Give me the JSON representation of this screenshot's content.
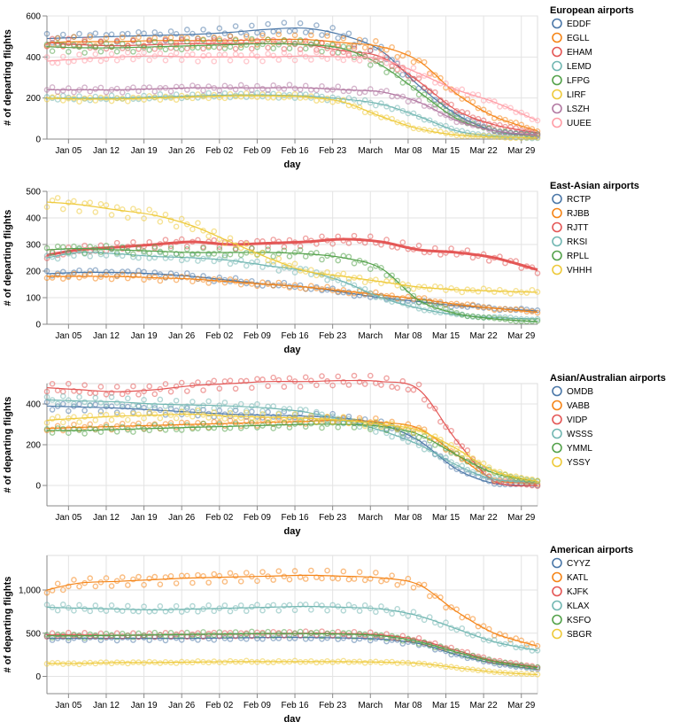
{
  "chart_data": [
    {
      "type": "scatter",
      "title": "",
      "xlabel": "day",
      "ylabel": "# of departing flights",
      "legend_title": "European airports",
      "legend_position": "right",
      "x_ticks": [
        "Jan 05",
        "Jan 12",
        "Jan 19",
        "Jan 26",
        "Feb 02",
        "Feb 09",
        "Feb 16",
        "Feb 23",
        "March",
        "Mar 08",
        "Mar 15",
        "Mar 22",
        "Mar 29"
      ],
      "xlim": [
        1,
        92
      ],
      "ylim": [
        0,
        600
      ],
      "y_ticks": [
        0,
        200,
        400,
        600
      ],
      "y_tick_labels": [
        "0",
        "200",
        "400",
        "600"
      ],
      "series": [
        {
          "name": "EDDF",
          "color": "#4c78a8",
          "x": [
            1,
            7,
            14,
            21,
            28,
            35,
            42,
            49,
            56,
            63,
            70,
            77,
            84,
            92
          ],
          "values": [
            490,
            495,
            500,
            505,
            510,
            520,
            535,
            540,
            505,
            430,
            260,
            120,
            40,
            15
          ]
        },
        {
          "name": "EGLL",
          "color": "#f58518",
          "x": [
            1,
            7,
            14,
            21,
            28,
            35,
            42,
            49,
            56,
            63,
            70,
            77,
            84,
            92
          ],
          "values": [
            470,
            475,
            475,
            480,
            480,
            480,
            485,
            485,
            470,
            450,
            380,
            220,
            110,
            40
          ]
        },
        {
          "name": "EHAM",
          "color": "#e45756",
          "x": [
            1,
            7,
            14,
            21,
            28,
            35,
            42,
            49,
            56,
            63,
            70,
            77,
            84,
            92
          ],
          "values": [
            470,
            460,
            455,
            460,
            465,
            465,
            465,
            460,
            430,
            400,
            280,
            140,
            70,
            30
          ]
        },
        {
          "name": "LEMD",
          "color": "#72b7b2",
          "x": [
            1,
            7,
            14,
            21,
            28,
            35,
            42,
            49,
            56,
            63,
            70,
            77,
            84,
            92
          ],
          "values": [
            200,
            200,
            200,
            205,
            210,
            215,
            215,
            210,
            195,
            170,
            110,
            40,
            15,
            5
          ]
        },
        {
          "name": "LFPG",
          "color": "#54a24b",
          "x": [
            1,
            7,
            14,
            21,
            28,
            35,
            42,
            49,
            56,
            63,
            70,
            77,
            84,
            92
          ],
          "values": [
            450,
            445,
            445,
            450,
            455,
            460,
            465,
            460,
            440,
            360,
            230,
            100,
            40,
            20
          ]
        },
        {
          "name": "LIRF",
          "color": "#eeca3b",
          "x": [
            1,
            7,
            14,
            21,
            28,
            35,
            42,
            49,
            56,
            63,
            70,
            77,
            84,
            92
          ],
          "values": [
            200,
            195,
            195,
            200,
            205,
            210,
            210,
            205,
            180,
            110,
            50,
            20,
            10,
            5
          ]
        },
        {
          "name": "LSZH",
          "color": "#b279a2",
          "x": [
            1,
            7,
            14,
            21,
            28,
            35,
            42,
            49,
            56,
            63,
            70,
            77,
            84,
            92
          ],
          "values": [
            240,
            240,
            240,
            245,
            250,
            250,
            250,
            250,
            240,
            230,
            180,
            90,
            40,
            20
          ]
        },
        {
          "name": "UUEE",
          "color": "#ff9da6",
          "x": [
            1,
            7,
            14,
            21,
            28,
            35,
            42,
            49,
            56,
            63,
            70,
            77,
            84,
            92
          ],
          "values": [
            380,
            390,
            400,
            405,
            400,
            400,
            400,
            405,
            400,
            390,
            320,
            240,
            180,
            90
          ]
        }
      ]
    },
    {
      "type": "scatter",
      "title": "",
      "xlabel": "day",
      "ylabel": "# of departing flights",
      "legend_title": "East-Asian airports",
      "legend_position": "right",
      "x_ticks": [
        "Jan 05",
        "Jan 12",
        "Jan 19",
        "Jan 26",
        "Feb 02",
        "Feb 09",
        "Feb 16",
        "Feb 23",
        "March",
        "Mar 08",
        "Mar 15",
        "Mar 22",
        "Mar 29"
      ],
      "xlim": [
        1,
        92
      ],
      "ylim": [
        0,
        500
      ],
      "y_ticks": [
        0,
        100,
        200,
        300,
        400,
        500
      ],
      "y_tick_labels": [
        "0",
        "100",
        "200",
        "300",
        "400",
        "500"
      ],
      "series": [
        {
          "name": "RCTP",
          "color": "#4c78a8",
          "x": [
            1,
            7,
            14,
            21,
            28,
            35,
            42,
            49,
            56,
            63,
            70,
            77,
            84,
            92
          ],
          "values": [
            190,
            195,
            195,
            190,
            180,
            165,
            150,
            140,
            120,
            100,
            85,
            70,
            60,
            50
          ]
        },
        {
          "name": "RJBB",
          "color": "#f58518",
          "x": [
            1,
            7,
            14,
            21,
            28,
            35,
            42,
            49,
            56,
            63,
            70,
            77,
            84,
            92
          ],
          "values": [
            180,
            180,
            180,
            175,
            170,
            160,
            150,
            140,
            125,
            110,
            95,
            75,
            60,
            45
          ]
        },
        {
          "name": "RJTT",
          "color": "#e45756",
          "x": [
            1,
            7,
            14,
            21,
            28,
            35,
            42,
            49,
            56,
            63,
            70,
            77,
            84,
            92
          ],
          "values": [
            260,
            280,
            290,
            300,
            310,
            300,
            305,
            310,
            320,
            310,
            280,
            270,
            250,
            205
          ]
        },
        {
          "name": "RKSI",
          "color": "#72b7b2",
          "x": [
            1,
            7,
            14,
            21,
            28,
            35,
            42,
            49,
            56,
            63,
            70,
            77,
            84,
            92
          ],
          "values": [
            250,
            270,
            265,
            255,
            250,
            240,
            220,
            200,
            160,
            100,
            60,
            35,
            25,
            20
          ]
        },
        {
          "name": "RPLL",
          "color": "#54a24b",
          "x": [
            1,
            7,
            14,
            21,
            28,
            35,
            42,
            49,
            56,
            63,
            70,
            77,
            84,
            92
          ],
          "values": [
            280,
            285,
            280,
            275,
            270,
            270,
            270,
            265,
            250,
            210,
            90,
            40,
            20,
            10
          ]
        },
        {
          "name": "VHHH",
          "color": "#eeca3b",
          "x": [
            1,
            7,
            14,
            21,
            28,
            35,
            42,
            49,
            56,
            63,
            70,
            77,
            84,
            92
          ],
          "values": [
            460,
            450,
            430,
            410,
            370,
            310,
            250,
            200,
            180,
            160,
            140,
            130,
            125,
            120
          ]
        }
      ]
    },
    {
      "type": "scatter",
      "title": "",
      "xlabel": "day",
      "ylabel": "# of departing flights",
      "legend_title": "Asian/Australian airports",
      "legend_position": "right",
      "x_ticks": [
        "Jan 05",
        "Jan 12",
        "Jan 19",
        "Jan 26",
        "Feb 02",
        "Feb 09",
        "Feb 16",
        "Feb 23",
        "March",
        "Mar 08",
        "Mar 15",
        "Mar 22",
        "Mar 29"
      ],
      "xlim": [
        1,
        92
      ],
      "ylim": [
        -100,
        500
      ],
      "y_ticks": [
        0,
        200,
        400
      ],
      "y_tick_labels": [
        "0",
        "200",
        "400"
      ],
      "series": [
        {
          "name": "OMDB",
          "color": "#4c78a8",
          "x": [
            1,
            7,
            14,
            21,
            28,
            35,
            42,
            49,
            56,
            63,
            70,
            77,
            84,
            92
          ],
          "values": [
            390,
            385,
            380,
            370,
            360,
            350,
            345,
            340,
            330,
            300,
            220,
            80,
            10,
            0
          ]
        },
        {
          "name": "VABB",
          "color": "#f58518",
          "x": [
            1,
            7,
            14,
            21,
            28,
            35,
            42,
            49,
            56,
            63,
            70,
            77,
            84,
            92
          ],
          "values": [
            280,
            285,
            290,
            295,
            300,
            305,
            310,
            315,
            320,
            310,
            280,
            150,
            30,
            10
          ]
        },
        {
          "name": "VIDP",
          "color": "#e45756",
          "x": [
            1,
            7,
            14,
            21,
            28,
            35,
            42,
            49,
            56,
            63,
            70,
            77,
            84,
            92
          ],
          "values": [
            480,
            470,
            460,
            470,
            490,
            500,
            510,
            510,
            515,
            510,
            470,
            220,
            20,
            0
          ]
        },
        {
          "name": "WSSS",
          "color": "#72b7b2",
          "x": [
            1,
            7,
            14,
            21,
            28,
            35,
            42,
            49,
            56,
            63,
            70,
            77,
            84,
            92
          ],
          "values": [
            420,
            415,
            410,
            400,
            395,
            390,
            380,
            360,
            320,
            270,
            200,
            100,
            30,
            20
          ]
        },
        {
          "name": "YMML",
          "color": "#54a24b",
          "x": [
            1,
            7,
            14,
            21,
            28,
            35,
            42,
            49,
            56,
            63,
            70,
            77,
            84,
            92
          ],
          "values": [
            270,
            270,
            275,
            280,
            285,
            290,
            295,
            300,
            300,
            290,
            250,
            150,
            60,
            20
          ]
        },
        {
          "name": "YSSY",
          "color": "#eeca3b",
          "x": [
            1,
            7,
            14,
            21,
            28,
            35,
            42,
            49,
            56,
            63,
            70,
            77,
            84,
            92
          ],
          "values": [
            320,
            330,
            340,
            345,
            350,
            340,
            335,
            330,
            320,
            300,
            270,
            180,
            70,
            20
          ]
        }
      ]
    },
    {
      "type": "scatter",
      "title": "",
      "xlabel": "day",
      "ylabel": "# of departing flights",
      "legend_title": "American airports",
      "legend_position": "right",
      "x_ticks": [
        "Jan 05",
        "Jan 12",
        "Jan 19",
        "Jan 26",
        "Feb 02",
        "Feb 09",
        "Feb 16",
        "Feb 23",
        "March",
        "Mar 08",
        "Mar 15",
        "Mar 22",
        "Mar 29"
      ],
      "xlim": [
        1,
        92
      ],
      "ylim": [
        -200,
        1400
      ],
      "y_ticks": [
        0,
        500,
        1000
      ],
      "y_tick_labels": [
        "0",
        "500",
        "1,000"
      ],
      "series": [
        {
          "name": "CYYZ",
          "color": "#4c78a8",
          "x": [
            1,
            7,
            14,
            21,
            28,
            35,
            42,
            49,
            56,
            63,
            70,
            77,
            84,
            92
          ],
          "values": [
            440,
            440,
            440,
            440,
            440,
            445,
            450,
            450,
            445,
            430,
            380,
            250,
            150,
            80
          ]
        },
        {
          "name": "KATL",
          "color": "#f58518",
          "x": [
            1,
            7,
            14,
            21,
            28,
            35,
            42,
            49,
            56,
            63,
            70,
            77,
            84,
            92
          ],
          "values": [
            1000,
            1080,
            1100,
            1120,
            1140,
            1150,
            1160,
            1170,
            1160,
            1140,
            1060,
            750,
            500,
            350
          ]
        },
        {
          "name": "KJFK",
          "color": "#e45756",
          "x": [
            1,
            7,
            14,
            21,
            28,
            35,
            42,
            49,
            56,
            63,
            70,
            77,
            84,
            92
          ],
          "values": [
            480,
            480,
            475,
            480,
            485,
            490,
            495,
            500,
            495,
            480,
            420,
            300,
            180,
            110
          ]
        },
        {
          "name": "KLAX",
          "color": "#72b7b2",
          "x": [
            1,
            7,
            14,
            21,
            28,
            35,
            42,
            49,
            56,
            63,
            70,
            77,
            84,
            92
          ],
          "values": [
            800,
            790,
            780,
            770,
            780,
            790,
            800,
            810,
            800,
            780,
            700,
            550,
            400,
            300
          ]
        },
        {
          "name": "KSFO",
          "color": "#54a24b",
          "x": [
            1,
            7,
            14,
            21,
            28,
            35,
            42,
            49,
            56,
            63,
            70,
            77,
            84,
            92
          ],
          "values": [
            470,
            470,
            475,
            480,
            485,
            490,
            495,
            495,
            490,
            470,
            400,
            280,
            170,
            100
          ]
        },
        {
          "name": "SBGR",
          "color": "#eeca3b",
          "x": [
            1,
            7,
            14,
            21,
            28,
            35,
            42,
            49,
            56,
            63,
            70,
            77,
            84,
            92
          ],
          "values": [
            150,
            150,
            160,
            160,
            165,
            170,
            170,
            170,
            170,
            165,
            150,
            100,
            50,
            20
          ]
        }
      ]
    }
  ]
}
